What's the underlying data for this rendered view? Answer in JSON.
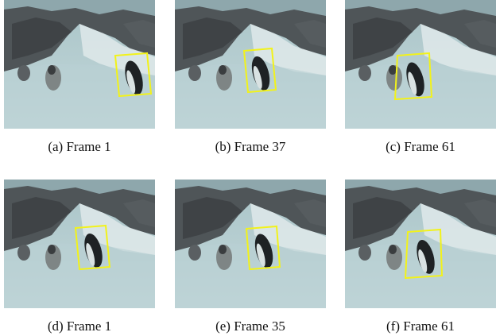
{
  "figure": {
    "panels": [
      {
        "caption": "(a) Frame 1"
      },
      {
        "caption": "(b) Frame 37"
      },
      {
        "caption": "(c) Frame 61"
      },
      {
        "caption": "(d) Frame 1"
      },
      {
        "caption": "(e) Frame 35"
      },
      {
        "caption": "(f) Frame 61"
      }
    ]
  }
}
